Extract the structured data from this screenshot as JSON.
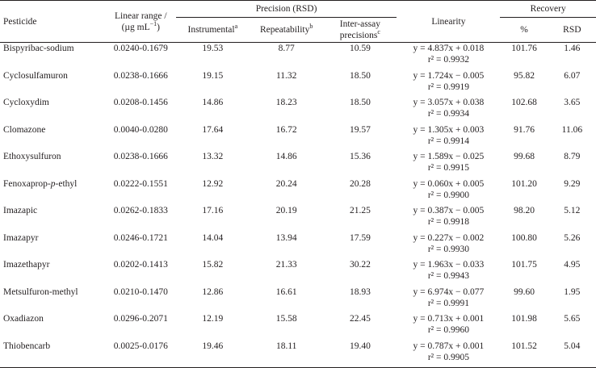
{
  "header": {
    "pesticide": "Pesticide",
    "linear_range": "Linear range /",
    "linear_range_unit": "(µg mL",
    "linear_range_unit_exp": "−1",
    "linear_range_unit_close": ")",
    "precision": "Precision (RSD)",
    "instrumental": "Instrumental",
    "instrumental_sup": "a",
    "repeatability": "Repeatability",
    "repeatability_sup": "b",
    "inter_assay_line1": "Inter-assay",
    "inter_assay_line2": "precisions",
    "inter_assay_sup": "c",
    "linearity": "Linearity",
    "recovery": "Recovery",
    "percent": "%",
    "rsd": "RSD"
  },
  "rows": [
    {
      "pesticide": "Bispyribac-sodium",
      "linear_range": "0.0240-0.1679",
      "instrumental": "19.53",
      "repeatability": "8.77",
      "inter_assay": "10.59",
      "equation": "y = 4.837x + 0.018",
      "r2": "r² = 0.9932",
      "recovery": "101.76",
      "rsd": "1.46"
    },
    {
      "pesticide": "Cyclosulfamuron",
      "linear_range": "0.0238-0.1666",
      "instrumental": "19.15",
      "repeatability": "11.32",
      "inter_assay": "18.50",
      "equation": "y = 1.724x − 0.005",
      "r2": "r² = 0.9919",
      "recovery": "95.82",
      "rsd": "6.07"
    },
    {
      "pesticide": "Cycloxydim",
      "linear_range": "0.0208-0.1456",
      "instrumental": "14.86",
      "repeatability": "18.23",
      "inter_assay": "18.50",
      "equation": "y = 3.057x + 0.038",
      "r2": "r² = 0.9934",
      "recovery": "102.68",
      "rsd": "3.65"
    },
    {
      "pesticide": "Clomazone",
      "linear_range": "0.0040-0.0280",
      "instrumental": "17.64",
      "repeatability": "16.72",
      "inter_assay": "19.57",
      "equation": "y = 1.305x + 0.003",
      "r2": "r² = 0.9914",
      "recovery": "91.76",
      "rsd": "11.06"
    },
    {
      "pesticide": "Ethoxysulfuron",
      "linear_range": "0.0238-0.1666",
      "instrumental": "13.32",
      "repeatability": "14.86",
      "inter_assay": "15.36",
      "equation": "y = 1.589x − 0.025",
      "r2": "r² = 0.9915",
      "recovery": "99.68",
      "rsd": "8.79"
    },
    {
      "pesticide_pre": "Fenoxaprop-",
      "pesticide_italic": "p",
      "pesticide_post": "-ethyl",
      "linear_range": "0.0222-0.1551",
      "instrumental": "12.92",
      "repeatability": "20.24",
      "inter_assay": "20.28",
      "equation": "y = 0.060x + 0.005",
      "r2": "r² = 0.9900",
      "recovery": "101.20",
      "rsd": "9.29"
    },
    {
      "pesticide": "Imazapic",
      "linear_range": "0.0262-0.1833",
      "instrumental": "17.16",
      "repeatability": "20.19",
      "inter_assay": "21.25",
      "equation": "y = 0.387x − 0.005",
      "r2": "r² = 0.9918",
      "recovery": "98.20",
      "rsd": "5.12"
    },
    {
      "pesticide": "Imazapyr",
      "linear_range": "0.0246-0.1721",
      "instrumental": "14.04",
      "repeatability": "13.94",
      "inter_assay": "17.59",
      "equation": "y = 0.227x − 0.002",
      "r2": "r² = 0.9930",
      "recovery": "100.80",
      "rsd": "5.26"
    },
    {
      "pesticide": "Imazethapyr",
      "linear_range": "0.0202-0.1413",
      "instrumental": "15.82",
      "repeatability": "21.33",
      "inter_assay": "30.22",
      "equation": "y = 1.963x − 0.033",
      "r2": "r² = 0.9943",
      "recovery": "101.75",
      "rsd": "4.95"
    },
    {
      "pesticide": "Metsulfuron-methyl",
      "linear_range": "0.0210-0.1470",
      "instrumental": "12.86",
      "repeatability": "16.61",
      "inter_assay": "18.93",
      "equation": "y = 6.974x − 0.077",
      "r2": "r² = 0.9991",
      "recovery": "99.60",
      "rsd": "1.95"
    },
    {
      "pesticide": "Oxadiazon",
      "linear_range": "0.0296-0.2071",
      "instrumental": "12.19",
      "repeatability": "15.58",
      "inter_assay": "22.45",
      "equation": "y = 0.713x + 0.001",
      "r2": "r² = 0.9960",
      "recovery": "101.98",
      "rsd": "5.65"
    },
    {
      "pesticide": "Thiobencarb",
      "linear_range": "0.0025-0.0176",
      "instrumental": "19.46",
      "repeatability": "18.11",
      "inter_assay": "19.40",
      "equation": "y = 0.787x + 0.001",
      "r2": "r² = 0.9905",
      "recovery": "101.52",
      "rsd": "5.04"
    }
  ]
}
